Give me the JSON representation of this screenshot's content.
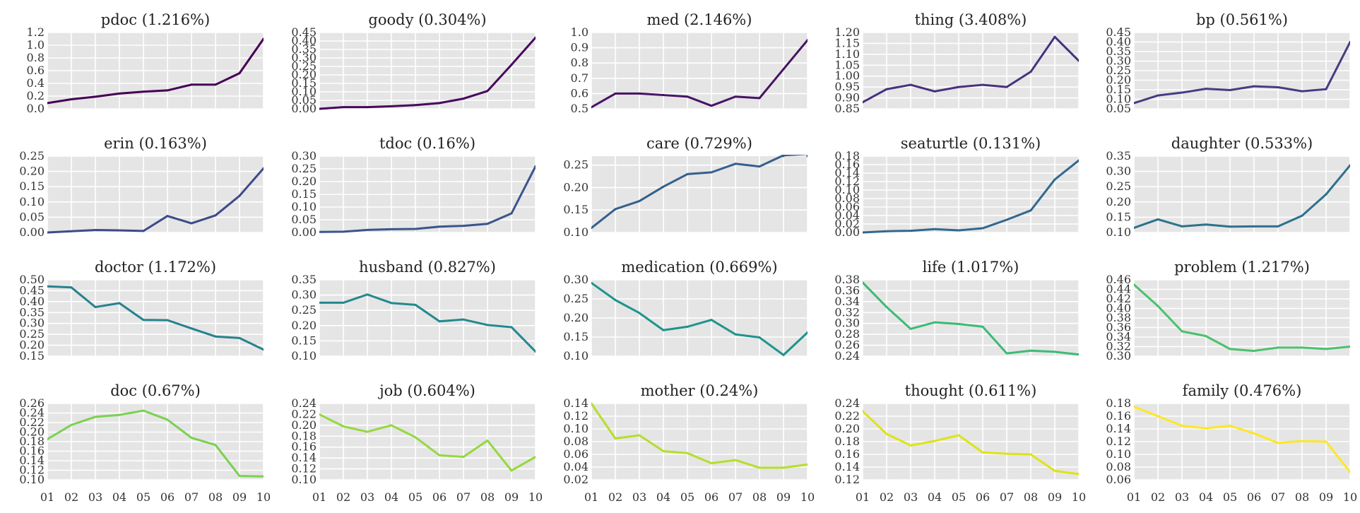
{
  "chart_data": [
    {
      "type": "line",
      "title": "pdoc (1.216%)",
      "color": "#440154",
      "x": [
        "01",
        "02",
        "03",
        "04",
        "05",
        "06",
        "07",
        "08",
        "09",
        "10"
      ],
      "ylim": [
        0.0,
        1.2
      ],
      "yticks": [
        "0.0",
        "0.2",
        "0.4",
        "0.6",
        "0.8",
        "1.0",
        "1.2"
      ],
      "values": [
        0.09,
        0.15,
        0.19,
        0.24,
        0.27,
        0.29,
        0.38,
        0.38,
        0.56,
        1.1
      ]
    },
    {
      "type": "line",
      "title": "goody (0.304%)",
      "color": "#46085c",
      "x": [
        "01",
        "02",
        "03",
        "04",
        "05",
        "06",
        "07",
        "08",
        "09",
        "10"
      ],
      "ylim": [
        0.0,
        0.45
      ],
      "yticks": [
        "0.00",
        "0.05",
        "0.10",
        "0.15",
        "0.20",
        "0.25",
        "0.30",
        "0.35",
        "0.40",
        "0.45"
      ],
      "values": [
        0.0,
        0.01,
        0.01,
        0.015,
        0.022,
        0.034,
        0.06,
        0.105,
        0.26,
        0.42
      ]
    },
    {
      "type": "line",
      "title": "med (2.146%)",
      "color": "#471365",
      "x": [
        "01",
        "02",
        "03",
        "04",
        "05",
        "06",
        "07",
        "08",
        "09",
        "10"
      ],
      "ylim": [
        0.5,
        1.0
      ],
      "yticks": [
        "0.5",
        "0.6",
        "0.7",
        "0.8",
        "0.9",
        "1.0"
      ],
      "values": [
        0.51,
        0.6,
        0.6,
        0.59,
        0.58,
        0.52,
        0.58,
        0.57,
        0.76,
        0.95
      ]
    },
    {
      "type": "line",
      "title": "thing (3.408%)",
      "color": "#46317e",
      "x": [
        "01",
        "02",
        "03",
        "04",
        "05",
        "06",
        "07",
        "08",
        "09",
        "10"
      ],
      "ylim": [
        0.85,
        1.2
      ],
      "yticks": [
        "0.85",
        "0.90",
        "0.95",
        "1.00",
        "1.05",
        "1.10",
        "1.15",
        "1.20"
      ],
      "values": [
        0.88,
        0.94,
        0.96,
        0.93,
        0.95,
        0.96,
        0.95,
        1.02,
        1.18,
        1.07
      ]
    },
    {
      "type": "line",
      "title": "bp (0.561%)",
      "color": "#433d84",
      "x": [
        "01",
        "02",
        "03",
        "04",
        "05",
        "06",
        "07",
        "08",
        "09",
        "10"
      ],
      "ylim": [
        0.05,
        0.45
      ],
      "yticks": [
        "0.05",
        "0.10",
        "0.15",
        "0.20",
        "0.25",
        "0.30",
        "0.35",
        "0.40",
        "0.45"
      ],
      "values": [
        0.08,
        0.12,
        0.135,
        0.155,
        0.148,
        0.168,
        0.163,
        0.142,
        0.153,
        0.4
      ]
    },
    {
      "type": "line",
      "title": "erin (0.163%)",
      "color": "#3e4a89",
      "x": [
        "01",
        "02",
        "03",
        "04",
        "05",
        "06",
        "07",
        "08",
        "09",
        "10"
      ],
      "ylim": [
        0.0,
        0.25
      ],
      "yticks": [
        "0.00",
        "0.05",
        "0.10",
        "0.15",
        "0.20",
        "0.25"
      ],
      "values": [
        0.0,
        0.004,
        0.008,
        0.007,
        0.005,
        0.054,
        0.03,
        0.056,
        0.12,
        0.21
      ]
    },
    {
      "type": "line",
      "title": "tdoc (0.16%)",
      "color": "#3a548c",
      "x": [
        "01",
        "02",
        "03",
        "04",
        "05",
        "06",
        "07",
        "08",
        "09",
        "10"
      ],
      "ylim": [
        0.0,
        0.3
      ],
      "yticks": [
        "0.00",
        "0.05",
        "0.10",
        "0.15",
        "0.20",
        "0.25",
        "0.30"
      ],
      "values": [
        0.002,
        0.003,
        0.01,
        0.013,
        0.014,
        0.023,
        0.026,
        0.034,
        0.075,
        0.26
      ]
    },
    {
      "type": "line",
      "title": "care (0.729%)",
      "color": "#355f8d",
      "x": [
        "01",
        "02",
        "03",
        "04",
        "05",
        "06",
        "07",
        "08",
        "09",
        "10"
      ],
      "ylim": [
        0.1,
        0.27
      ],
      "yticks": [
        "0.10",
        "0.15",
        "0.20",
        "0.25"
      ],
      "values": [
        0.11,
        0.152,
        0.17,
        0.202,
        0.23,
        0.234,
        0.253,
        0.247,
        0.272,
        0.275
      ]
    },
    {
      "type": "line",
      "title": "seaturtle (0.131%)",
      "color": "#31688e",
      "x": [
        "01",
        "02",
        "03",
        "04",
        "05",
        "06",
        "07",
        "08",
        "09",
        "10"
      ],
      "ylim": [
        0.0,
        0.18
      ],
      "yticks": [
        "0.00",
        "0.02",
        "0.04",
        "0.06",
        "0.08",
        "0.10",
        "0.12",
        "0.14",
        "0.16",
        "0.18"
      ],
      "values": [
        0.0,
        0.003,
        0.004,
        0.008,
        0.005,
        0.01,
        0.03,
        0.052,
        0.125,
        0.17
      ]
    },
    {
      "type": "line",
      "title": "daughter (0.533%)",
      "color": "#2d718e",
      "x": [
        "01",
        "02",
        "03",
        "04",
        "05",
        "06",
        "07",
        "08",
        "09",
        "10"
      ],
      "ylim": [
        0.1,
        0.35
      ],
      "yticks": [
        "0.10",
        "0.15",
        "0.20",
        "0.25",
        "0.30",
        "0.35"
      ],
      "values": [
        0.115,
        0.143,
        0.12,
        0.126,
        0.119,
        0.12,
        0.12,
        0.155,
        0.225,
        0.32
      ]
    },
    {
      "type": "line",
      "title": "doctor (1.172%)",
      "color": "#26828e",
      "x": [
        "01",
        "02",
        "03",
        "04",
        "05",
        "06",
        "07",
        "08",
        "09",
        "10"
      ],
      "ylim": [
        0.15,
        0.5
      ],
      "yticks": [
        "0.15",
        "0.20",
        "0.25",
        "0.30",
        "0.35",
        "0.40",
        "0.45",
        "0.50"
      ],
      "values": [
        0.47,
        0.465,
        0.375,
        0.393,
        0.316,
        0.315,
        0.277,
        0.24,
        0.233,
        0.18
      ]
    },
    {
      "type": "line",
      "title": "husband (0.827%)",
      "color": "#23898e",
      "x": [
        "01",
        "02",
        "03",
        "04",
        "05",
        "06",
        "07",
        "08",
        "09",
        "10"
      ],
      "ylim": [
        0.1,
        0.35
      ],
      "yticks": [
        "0.10",
        "0.15",
        "0.20",
        "0.25",
        "0.30",
        "0.35"
      ],
      "values": [
        0.275,
        0.275,
        0.302,
        0.274,
        0.268,
        0.214,
        0.22,
        0.202,
        0.195,
        0.115
      ]
    },
    {
      "type": "line",
      "title": "medication (0.669%)",
      "color": "#1f948c",
      "x": [
        "01",
        "02",
        "03",
        "04",
        "05",
        "06",
        "07",
        "08",
        "09",
        "10"
      ],
      "ylim": [
        0.1,
        0.3
      ],
      "yticks": [
        "0.10",
        "0.15",
        "0.20",
        "0.25",
        "0.30"
      ],
      "values": [
        0.292,
        0.247,
        0.213,
        0.168,
        0.177,
        0.195,
        0.157,
        0.149,
        0.103,
        0.162
      ]
    },
    {
      "type": "line",
      "title": "life (1.017%)",
      "color": "#3bbb75",
      "x": [
        "01",
        "02",
        "03",
        "04",
        "05",
        "06",
        "07",
        "08",
        "09",
        "10"
      ],
      "ylim": [
        0.24,
        0.38
      ],
      "yticks": [
        "0.24",
        "0.26",
        "0.28",
        "0.30",
        "0.32",
        "0.34",
        "0.36",
        "0.38"
      ],
      "values": [
        0.375,
        0.33,
        0.29,
        0.302,
        0.299,
        0.294,
        0.245,
        0.25,
        0.248,
        0.243
      ]
    },
    {
      "type": "line",
      "title": "problem (1.217%)",
      "color": "#4ac16d",
      "x": [
        "01",
        "02",
        "03",
        "04",
        "05",
        "06",
        "07",
        "08",
        "09",
        "10"
      ],
      "ylim": [
        0.3,
        0.46
      ],
      "yticks": [
        "0.30",
        "0.32",
        "0.34",
        "0.36",
        "0.38",
        "0.40",
        "0.42",
        "0.44",
        "0.46"
      ],
      "values": [
        0.45,
        0.405,
        0.352,
        0.342,
        0.315,
        0.311,
        0.318,
        0.318,
        0.315,
        0.32
      ]
    },
    {
      "type": "line",
      "title": "doc (0.67%)",
      "color": "#7ad151",
      "x": [
        "01",
        "02",
        "03",
        "04",
        "05",
        "06",
        "07",
        "08",
        "09",
        "10"
      ],
      "ylim": [
        0.1,
        0.26
      ],
      "yticks": [
        "0.10",
        "0.12",
        "0.14",
        "0.16",
        "0.18",
        "0.20",
        "0.22",
        "0.24",
        "0.26"
      ],
      "values": [
        0.185,
        0.215,
        0.232,
        0.236,
        0.245,
        0.226,
        0.188,
        0.173,
        0.108,
        0.107
      ]
    },
    {
      "type": "line",
      "title": "job (0.604%)",
      "color": "#95d840",
      "x": [
        "01",
        "02",
        "03",
        "04",
        "05",
        "06",
        "07",
        "08",
        "09",
        "10"
      ],
      "ylim": [
        0.1,
        0.24
      ],
      "yticks": [
        "0.10",
        "0.12",
        "0.14",
        "0.16",
        "0.18",
        "0.20",
        "0.22",
        "0.24"
      ],
      "values": [
        0.22,
        0.198,
        0.188,
        0.2,
        0.178,
        0.145,
        0.142,
        0.172,
        0.117,
        0.142
      ]
    },
    {
      "type": "line",
      "title": "mother (0.24%)",
      "color": "#b5de2b",
      "x": [
        "01",
        "02",
        "03",
        "04",
        "05",
        "06",
        "07",
        "08",
        "09",
        "10"
      ],
      "ylim": [
        0.02,
        0.14
      ],
      "yticks": [
        "0.02",
        "0.04",
        "0.06",
        "0.08",
        "0.10",
        "0.12",
        "0.14"
      ],
      "values": [
        0.14,
        0.085,
        0.09,
        0.065,
        0.062,
        0.046,
        0.051,
        0.039,
        0.039,
        0.044
      ]
    },
    {
      "type": "line",
      "title": "thought (0.611%)",
      "color": "#dde318",
      "x": [
        "01",
        "02",
        "03",
        "04",
        "05",
        "06",
        "07",
        "08",
        "09",
        "10"
      ],
      "ylim": [
        0.12,
        0.24
      ],
      "yticks": [
        "0.12",
        "0.14",
        "0.16",
        "0.18",
        "0.20",
        "0.22",
        "0.24"
      ],
      "values": [
        0.228,
        0.192,
        0.174,
        0.181,
        0.19,
        0.163,
        0.161,
        0.16,
        0.134,
        0.129
      ]
    },
    {
      "type": "line",
      "title": "family (0.476%)",
      "color": "#fde725",
      "x": [
        "01",
        "02",
        "03",
        "04",
        "05",
        "06",
        "07",
        "08",
        "09",
        "10"
      ],
      "ylim": [
        0.06,
        0.18
      ],
      "yticks": [
        "0.06",
        "0.08",
        "0.10",
        "0.12",
        "0.14",
        "0.16",
        "0.18"
      ],
      "values": [
        0.175,
        0.16,
        0.145,
        0.141,
        0.145,
        0.133,
        0.118,
        0.121,
        0.12,
        0.072
      ]
    }
  ]
}
